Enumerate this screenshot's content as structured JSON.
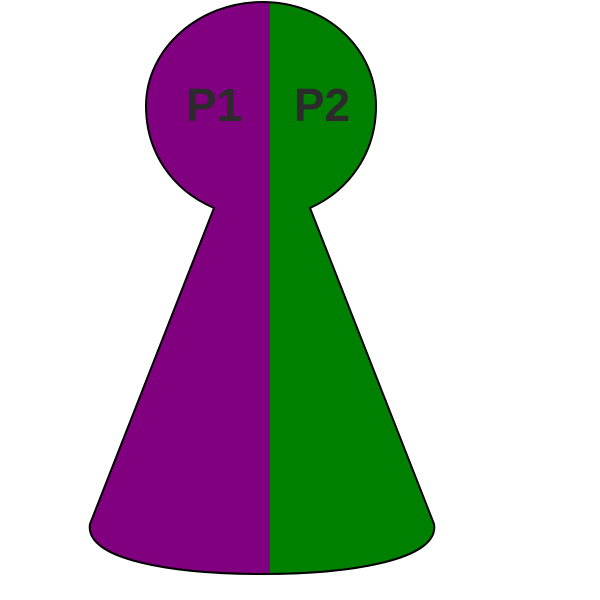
{
  "pawn": {
    "left_half": {
      "label": "P1",
      "color": "#800080"
    },
    "right_half": {
      "label": "P2",
      "color": "#008000"
    },
    "outline_color": "#000000",
    "label_color": "#2b2b2b"
  }
}
